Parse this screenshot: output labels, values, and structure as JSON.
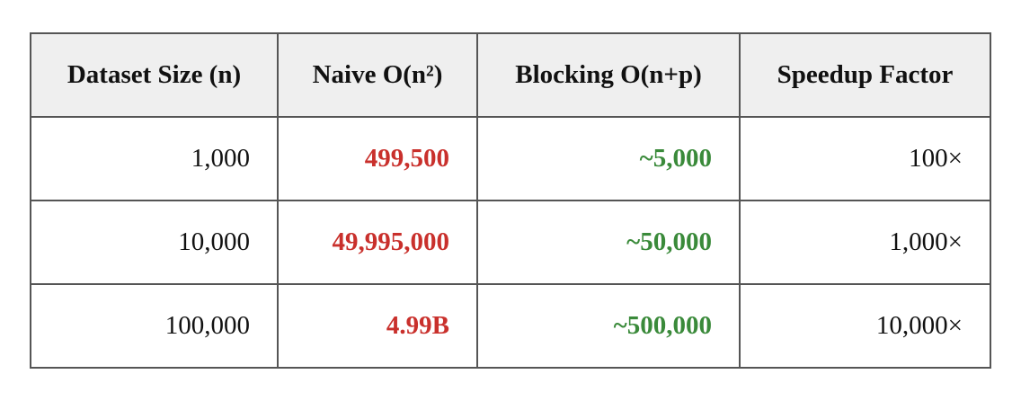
{
  "table": {
    "headers": [
      "Dataset Size (n)",
      "Naive O(n²)",
      "Blocking O(n+p)",
      "Speedup Factor"
    ],
    "rows": [
      {
        "size": "1,000",
        "naive": "499,500",
        "blocking": "~5,000",
        "speedup": "100×"
      },
      {
        "size": "10,000",
        "naive": "49,995,000",
        "blocking": "~50,000",
        "speedup": "1,000×"
      },
      {
        "size": "100,000",
        "naive": "4.99B",
        "blocking": "~500,000",
        "speedup": "10,000×"
      }
    ]
  },
  "colors": {
    "naive": "#c9302c",
    "blocking": "#3a8a3a",
    "header_bg": "#efefef",
    "border": "#555555"
  }
}
